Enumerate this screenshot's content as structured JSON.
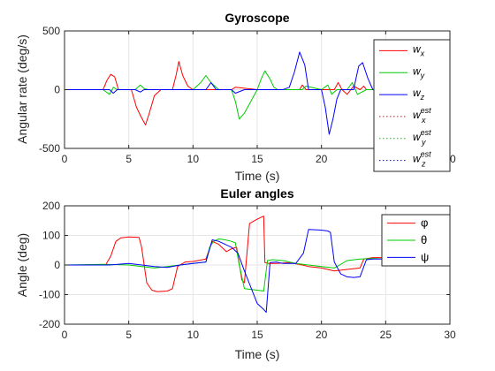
{
  "figure": {
    "background": "#ffffff"
  },
  "chart_data": [
    {
      "type": "line",
      "title": "Gyroscope",
      "xlabel": "Time (s)",
      "ylabel": "Angular rate (deg/s)",
      "xlim": [
        0,
        30
      ],
      "ylim": [
        -500,
        500
      ],
      "xticks": [
        0,
        5,
        10,
        15,
        20,
        25,
        30
      ],
      "yticks": [
        -500,
        0,
        500
      ],
      "grid": true,
      "legend_position": "right-inside",
      "legend": [
        {
          "base": "w",
          "sub": "x",
          "sup": "",
          "color": "#ff0000",
          "dash": false
        },
        {
          "base": "w",
          "sub": "y",
          "sup": "",
          "color": "#00cc00",
          "dash": false
        },
        {
          "base": "w",
          "sub": "z",
          "sup": "",
          "color": "#0000ff",
          "dash": false
        },
        {
          "base": "w",
          "sub": "x",
          "sup": "est",
          "color": "#ff0000",
          "dash": true
        },
        {
          "base": "w",
          "sub": "y",
          "sup": "est",
          "color": "#00cc00",
          "dash": true
        },
        {
          "base": "w",
          "sub": "z",
          "sup": "est",
          "color": "#0000ff",
          "dash": true
        }
      ],
      "series": [
        {
          "name": "wx",
          "color": "#ff0000",
          "x": [
            0,
            3.0,
            3.3,
            3.6,
            3.9,
            4.2,
            5.2,
            5.6,
            6.0,
            6.3,
            6.6,
            7.0,
            7.5,
            8.4,
            8.7,
            8.9,
            9.2,
            9.6,
            10.0,
            13.0,
            13.3,
            15.0,
            18.3,
            18.5,
            18.8,
            20.0,
            21.0,
            21.3,
            21.6,
            22.0,
            22.5,
            23.0,
            23.3,
            23.5,
            24.2
          ],
          "y": [
            0,
            0,
            80,
            130,
            110,
            0,
            0,
            -150,
            -240,
            -300,
            -200,
            -50,
            0,
            0,
            130,
            240,
            120,
            30,
            0,
            0,
            20,
            0,
            0,
            40,
            0,
            0,
            0,
            60,
            0,
            -40,
            30,
            0,
            30,
            0,
            0
          ]
        },
        {
          "name": "wy",
          "color": "#00cc00",
          "x": [
            0,
            3.0,
            3.5,
            3.8,
            4.1,
            5.5,
            5.9,
            6.2,
            6.5,
            7.0,
            10.0,
            10.6,
            11.0,
            11.4,
            12.0,
            13.0,
            13.3,
            13.6,
            14.0,
            14.4,
            15.0,
            15.3,
            15.6,
            16.0,
            16.3,
            16.6,
            17.5,
            18.5,
            18.8,
            20.0,
            20.5,
            20.8,
            21.2,
            22.0,
            22.4,
            22.8,
            23.5,
            24.2
          ],
          "y": [
            0,
            0,
            -40,
            20,
            0,
            0,
            40,
            10,
            0,
            0,
            0,
            60,
            120,
            60,
            0,
            0,
            -100,
            -250,
            -200,
            -120,
            0,
            90,
            160,
            90,
            20,
            0,
            0,
            0,
            30,
            0,
            40,
            -40,
            0,
            0,
            60,
            -40,
            0,
            0
          ]
        },
        {
          "name": "wz",
          "color": "#0000ff",
          "x": [
            0,
            3.5,
            3.8,
            4.1,
            5.5,
            5.9,
            6.2,
            7.0,
            11.0,
            11.4,
            11.8,
            13.0,
            13.3,
            14.0,
            17.0,
            17.5,
            17.9,
            18.3,
            18.7,
            19.0,
            19.4,
            20.0,
            20.3,
            20.6,
            20.9,
            21.2,
            21.5,
            22.5,
            22.9,
            23.2,
            23.6,
            24.0,
            24.2
          ],
          "y": [
            0,
            0,
            -30,
            0,
            0,
            -20,
            0,
            0,
            0,
            60,
            0,
            0,
            -30,
            0,
            0,
            20,
            150,
            320,
            210,
            0,
            0,
            0,
            -150,
            -380,
            -250,
            -80,
            0,
            0,
            200,
            230,
            100,
            0,
            0
          ]
        },
        {
          "name": "wx-est",
          "color": "#ff0000",
          "x": [],
          "y": []
        },
        {
          "name": "wy-est",
          "color": "#00cc00",
          "x": [],
          "y": []
        },
        {
          "name": "wz-est",
          "color": "#0000ff",
          "x": [],
          "y": []
        }
      ]
    },
    {
      "type": "line",
      "title": "Euler angles",
      "xlabel": "Time (s)",
      "ylabel": "Angle (deg)",
      "xlim": [
        0,
        30
      ],
      "ylim": [
        -200,
        200
      ],
      "xticks": [
        0,
        5,
        10,
        15,
        20,
        25,
        30
      ],
      "yticks": [
        -200,
        -100,
        0,
        100,
        200
      ],
      "grid": true,
      "legend_position": "right-inside",
      "legend": [
        {
          "symbol": "φ",
          "color": "#ff0000"
        },
        {
          "symbol": "θ",
          "color": "#00cc00"
        },
        {
          "symbol": "ψ",
          "color": "#0000ff"
        }
      ],
      "series": [
        {
          "name": "phi",
          "color": "#ff0000",
          "x": [
            0,
            3.2,
            3.6,
            4.0,
            4.4,
            5.0,
            5.8,
            6.0,
            6.4,
            6.8,
            7.2,
            8.0,
            8.4,
            8.8,
            9.4,
            10.0,
            11.0,
            11.5,
            12.0,
            12.6,
            13.0,
            13.4,
            13.8,
            14.0,
            14.4,
            15.0,
            15.5,
            15.6,
            15.9,
            16.5,
            17.5,
            18.5,
            19.0,
            20.0,
            21.0,
            22.0,
            23.0,
            23.3,
            24.0,
            25.0
          ],
          "y": [
            0,
            0,
            30,
            80,
            92,
            95,
            93,
            60,
            -60,
            -85,
            -90,
            -88,
            -80,
            -5,
            10,
            12,
            20,
            80,
            70,
            45,
            55,
            60,
            -50,
            -60,
            140,
            155,
            165,
            8,
            5,
            5,
            8,
            0,
            -5,
            -10,
            -20,
            -15,
            -10,
            20,
            25,
            25
          ]
        },
        {
          "name": "theta",
          "color": "#00cc00",
          "x": [
            0,
            3.0,
            5.0,
            6.0,
            7.0,
            8.0,
            9.0,
            10.0,
            11.0,
            11.3,
            11.6,
            12.0,
            12.5,
            13.0,
            13.3,
            13.6,
            14.0,
            15.0,
            15.5,
            15.8,
            16.2,
            17.0,
            18.0,
            19.0,
            20.0,
            21.0,
            22.0,
            23.0,
            24.0,
            25.0
          ],
          "y": [
            0,
            2,
            0,
            -5,
            -10,
            -5,
            0,
            5,
            10,
            60,
            80,
            88,
            85,
            80,
            75,
            0,
            -80,
            -85,
            -88,
            15,
            18,
            15,
            5,
            0,
            -5,
            -10,
            15,
            20,
            22,
            20
          ]
        },
        {
          "name": "psi",
          "color": "#0000ff",
          "x": [
            0,
            3.5,
            5.0,
            7.0,
            8.0,
            9.0,
            10.0,
            11.0,
            11.5,
            12.0,
            13.0,
            13.5,
            14.0,
            15.0,
            15.5,
            15.7,
            16.0,
            16.5,
            17.0,
            18.0,
            18.6,
            19.0,
            20.0,
            20.5,
            20.7,
            21.0,
            21.5,
            22.0,
            22.5,
            23.0,
            23.5,
            24.0,
            25.0
          ],
          "y": [
            0,
            0,
            5,
            -5,
            -8,
            0,
            5,
            10,
            85,
            80,
            60,
            40,
            -20,
            -130,
            -150,
            -160,
            8,
            10,
            5,
            5,
            40,
            120,
            118,
            115,
            110,
            10,
            -30,
            -40,
            -42,
            -40,
            18,
            20,
            20
          ]
        }
      ]
    }
  ]
}
